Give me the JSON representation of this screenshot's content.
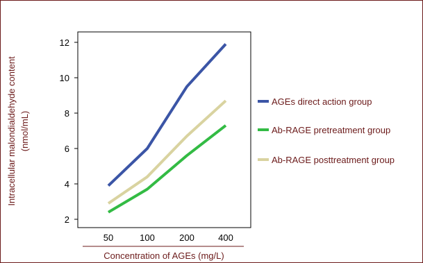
{
  "chart_data": {
    "type": "line",
    "title": "",
    "xlabel": "Concentration of AGEs (mg/L)",
    "ylabel_line1": "Intracellular malondialdehyde content",
    "ylabel_line2": "(nmol/mL)",
    "categories": [
      "50",
      "100",
      "200",
      "400"
    ],
    "yticks": [
      2,
      4,
      6,
      8,
      10,
      12
    ],
    "ylim": [
      1.8,
      12.5
    ],
    "grid": false,
    "legend_position": "right",
    "series": [
      {
        "name": "AGEs direct action group",
        "values": [
          3.9,
          6.0,
          9.5,
          11.9
        ],
        "color": "#3b55a6"
      },
      {
        "name": "Ab-RAGE pretreatment group",
        "values": [
          2.4,
          3.7,
          5.6,
          7.3
        ],
        "color": "#33bb44"
      },
      {
        "name": "Ab-RAGE posttreatment group",
        "values": [
          2.9,
          4.4,
          6.7,
          8.7
        ],
        "color": "#d9d3a0"
      }
    ]
  }
}
